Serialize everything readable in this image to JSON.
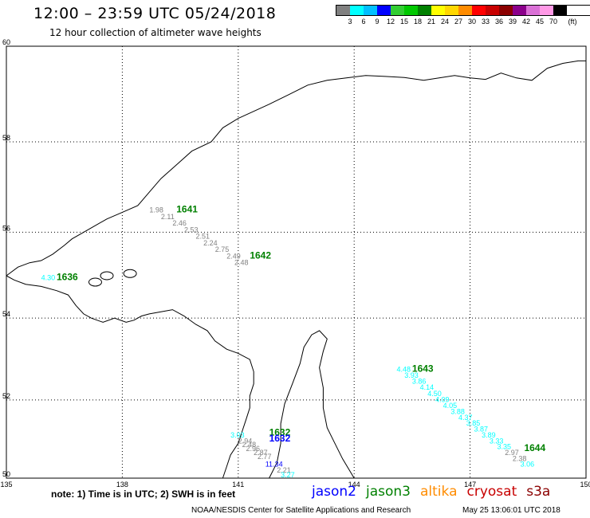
{
  "title": "12:00 – 23:59 UTC 05/24/2018",
  "subtitle": "12 hour collection of altimeter wave heights",
  "legend": {
    "unit": "(ft)",
    "colors": [
      "#808080",
      "#00ffff",
      "#00bfff",
      "#0000ff",
      "#32cd32",
      "#00c800",
      "#008000",
      "#ffff00",
      "#ffd700",
      "#ff8c00",
      "#ff0000",
      "#c80000",
      "#8b0000",
      "#8b008b",
      "#da70d6",
      "#ff99e6",
      "#000000"
    ],
    "labels": [
      "3",
      "6",
      "9",
      "12",
      "15",
      "18",
      "21",
      "24",
      "27",
      "30",
      "33",
      "36",
      "39",
      "42",
      "45",
      "70"
    ]
  },
  "map": {
    "lon_ticks": [
      "135",
      "138",
      "141",
      "144",
      "147",
      "150"
    ],
    "lat_ticks": [
      "50",
      "52",
      "54",
      "56",
      "58",
      "60"
    ]
  },
  "passes": [
    {
      "id": "1641",
      "color": "#008000",
      "label_pos": [
        139.4,
        56.45
      ],
      "points": [
        {
          "v": "1.98",
          "lon": 138.7,
          "lat": 56.45,
          "c": "#808080"
        },
        {
          "v": "2.11",
          "lon": 139.0,
          "lat": 56.3,
          "c": "#808080"
        },
        {
          "v": "2.46",
          "lon": 139.3,
          "lat": 56.15,
          "c": "#808080"
        },
        {
          "v": "2.53",
          "lon": 139.6,
          "lat": 56.0,
          "c": "#808080"
        },
        {
          "v": "2.51",
          "lon": 139.9,
          "lat": 55.85,
          "c": "#808080"
        },
        {
          "v": "2.24",
          "lon": 140.1,
          "lat": 55.7,
          "c": "#808080"
        },
        {
          "v": "2.75",
          "lon": 140.4,
          "lat": 55.55,
          "c": "#808080"
        },
        {
          "v": "2.49",
          "lon": 140.7,
          "lat": 55.4,
          "c": "#808080"
        },
        {
          "v": "2.48",
          "lon": 140.9,
          "lat": 55.25,
          "c": "#808080"
        }
      ]
    },
    {
      "id": "1642",
      "color": "#008000",
      "label_pos": [
        141.3,
        55.4
      ],
      "points": []
    },
    {
      "id": "1636",
      "color": "#008000",
      "label_pos": [
        136.3,
        54.9
      ],
      "points": [
        {
          "v": "4.30",
          "lon": 135.9,
          "lat": 54.9,
          "c": "#00ffff"
        }
      ]
    },
    {
      "id": "1643",
      "color": "#008000",
      "label_pos": [
        145.5,
        52.7
      ],
      "points": [
        {
          "v": "4.48",
          "lon": 145.1,
          "lat": 52.7,
          "c": "#00ffff"
        },
        {
          "v": "3.93",
          "lon": 145.3,
          "lat": 52.55,
          "c": "#00ffff"
        },
        {
          "v": "3.86",
          "lon": 145.5,
          "lat": 52.4,
          "c": "#00ffff"
        },
        {
          "v": "4.14",
          "lon": 145.7,
          "lat": 52.25,
          "c": "#00ffff"
        },
        {
          "v": "4.50",
          "lon": 145.9,
          "lat": 52.1,
          "c": "#00ffff"
        },
        {
          "v": "4.09",
          "lon": 146.1,
          "lat": 51.95,
          "c": "#00ffff"
        },
        {
          "v": "4.05",
          "lon": 146.3,
          "lat": 51.8,
          "c": "#00ffff"
        },
        {
          "v": "3.88",
          "lon": 146.5,
          "lat": 51.65,
          "c": "#00ffff"
        },
        {
          "v": "4.37",
          "lon": 146.7,
          "lat": 51.5,
          "c": "#00ffff"
        },
        {
          "v": "3.85",
          "lon": 146.9,
          "lat": 51.35,
          "c": "#00ffff"
        },
        {
          "v": "3.87",
          "lon": 147.1,
          "lat": 51.2,
          "c": "#00ffff"
        },
        {
          "v": "3.89",
          "lon": 147.3,
          "lat": 51.05,
          "c": "#00ffff"
        },
        {
          "v": "3.33",
          "lon": 147.5,
          "lat": 50.9,
          "c": "#00ffff"
        },
        {
          "v": "3.35",
          "lon": 147.7,
          "lat": 50.75,
          "c": "#00ffff"
        },
        {
          "v": "2.97",
          "lon": 147.9,
          "lat": 50.6,
          "c": "#808080"
        },
        {
          "v": "2.38",
          "lon": 148.1,
          "lat": 50.45,
          "c": "#808080"
        },
        {
          "v": "3.06",
          "lon": 148.3,
          "lat": 50.3,
          "c": "#00ffff"
        }
      ]
    },
    {
      "id": "1644",
      "color": "#008000",
      "label_pos": [
        148.4,
        50.7
      ],
      "points": []
    },
    {
      "id": "1632",
      "color": "#008000",
      "label_pos": [
        141.8,
        51.1
      ],
      "points": [
        {
          "v": "3.03",
          "lon": 140.8,
          "lat": 51.05,
          "c": "#00ffff"
        },
        {
          "v": "2.94",
          "lon": 141.0,
          "lat": 50.9,
          "c": "#808080"
        },
        {
          "v": "2.48",
          "lon": 141.1,
          "lat": 50.8,
          "c": "#808080"
        },
        {
          "v": "2.96",
          "lon": 141.2,
          "lat": 50.7,
          "c": "#808080"
        },
        {
          "v": "2.87",
          "lon": 141.4,
          "lat": 50.6,
          "c": "#808080"
        },
        {
          "v": "2.77",
          "lon": 141.5,
          "lat": 50.5,
          "c": "#808080"
        },
        {
          "v": "11.34",
          "lon": 141.7,
          "lat": 50.3,
          "c": "#0000ff"
        },
        {
          "v": "2.21",
          "lon": 142.0,
          "lat": 50.15,
          "c": "#808080"
        },
        {
          "v": "3.27",
          "lon": 142.1,
          "lat": 50.02,
          "c": "#00ffff"
        }
      ]
    },
    {
      "id": "1632",
      "color": "#0000ff",
      "label_pos": [
        141.8,
        50.95
      ],
      "points": []
    }
  ],
  "note": "note: 1) Time is in UTC; 2) SWH is in feet",
  "satellites": [
    {
      "name": "jason2",
      "color": "#0000ff"
    },
    {
      "name": "jason3",
      "color": "#008000"
    },
    {
      "name": "altika",
      "color": "#ff8c00"
    },
    {
      "name": "cryosat",
      "color": "#c80000"
    },
    {
      "name": "s3a",
      "color": "#8b0000"
    }
  ],
  "footer": "NOAA/NESDIS Center for Satellite Applications and Research",
  "timestamp": "May 25 13:06:01 UTC 2018"
}
